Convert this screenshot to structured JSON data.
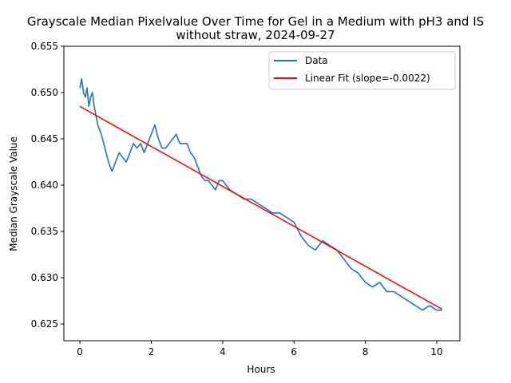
{
  "chart_data": {
    "type": "line",
    "title_line1": "Grayscale Median Pixelvalue Over Time for Gel in a Medium with pH3 and IS",
    "title_line2": "without straw, 2024-09-27",
    "xlabel": "Hours",
    "ylabel": "Median Grayscale Value",
    "xlim": [
      -0.45,
      10.65
    ],
    "ylim": [
      0.6232,
      0.655
    ],
    "xticks": [
      0,
      2,
      4,
      6,
      8,
      10
    ],
    "xtick_labels": [
      "0",
      "2",
      "4",
      "6",
      "8",
      "10"
    ],
    "yticks": [
      0.625,
      0.63,
      0.635,
      0.64,
      0.645,
      0.65,
      0.655
    ],
    "ytick_labels": [
      "0.625",
      "0.630",
      "0.635",
      "0.640",
      "0.645",
      "0.650",
      "0.655"
    ],
    "legend_position": "top-right",
    "series": [
      {
        "name": "Data",
        "color": "#1f77b4",
        "x": [
          0,
          0.05,
          0.1,
          0.15,
          0.2,
          0.25,
          0.3,
          0.35,
          0.4,
          0.5,
          0.6,
          0.7,
          0.8,
          0.9,
          1.0,
          1.1,
          1.2,
          1.3,
          1.4,
          1.5,
          1.6,
          1.7,
          1.8,
          1.9,
          2.0,
          2.1,
          2.2,
          2.3,
          2.4,
          2.5,
          2.6,
          2.7,
          2.8,
          2.9,
          3.0,
          3.1,
          3.2,
          3.3,
          3.4,
          3.5,
          3.6,
          3.7,
          3.8,
          3.9,
          4.0,
          4.2,
          4.4,
          4.6,
          4.8,
          5.0,
          5.2,
          5.4,
          5.6,
          5.8,
          6.0,
          6.2,
          6.4,
          6.6,
          6.8,
          7.0,
          7.2,
          7.4,
          7.6,
          7.8,
          8.0,
          8.2,
          8.4,
          8.6,
          8.8,
          9.0,
          9.2,
          9.4,
          9.6,
          9.8,
          10.0,
          10.15
        ],
        "y": [
          0.6505,
          0.6515,
          0.65,
          0.6495,
          0.6505,
          0.6485,
          0.6495,
          0.65,
          0.6485,
          0.6465,
          0.6455,
          0.644,
          0.6425,
          0.6415,
          0.6425,
          0.6435,
          0.643,
          0.6425,
          0.6435,
          0.6445,
          0.644,
          0.6445,
          0.6435,
          0.6445,
          0.6455,
          0.6465,
          0.645,
          0.644,
          0.644,
          0.6445,
          0.645,
          0.6455,
          0.6445,
          0.6445,
          0.6445,
          0.6435,
          0.643,
          0.642,
          0.641,
          0.6405,
          0.6405,
          0.64,
          0.6395,
          0.6405,
          0.6405,
          0.6395,
          0.639,
          0.6385,
          0.6385,
          0.638,
          0.6375,
          0.637,
          0.637,
          0.6365,
          0.636,
          0.6345,
          0.6335,
          0.633,
          0.634,
          0.6335,
          0.633,
          0.632,
          0.631,
          0.6305,
          0.6295,
          0.629,
          0.6295,
          0.6285,
          0.6285,
          0.628,
          0.6275,
          0.627,
          0.6265,
          0.627,
          0.6265,
          0.6265
        ]
      },
      {
        "name": "Linear Fit (slope=-0.0022)",
        "color": "#ff0000",
        "x": [
          0,
          10.15
        ],
        "y": [
          0.6485,
          0.6266
        ]
      }
    ]
  }
}
